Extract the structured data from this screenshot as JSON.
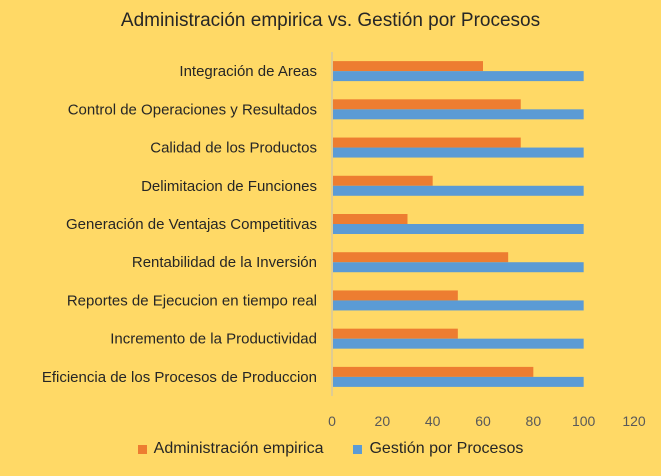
{
  "chart_data": {
    "type": "bar",
    "orientation": "horizontal",
    "title": "Administración empirica vs. Gestión por Procesos",
    "categories": [
      "Integración de Areas",
      "Control de Operaciones y Resultados",
      "Calidad de los Productos",
      "Delimitacion de Funciones",
      "Generación de Ventajas Competitivas",
      "Rentabilidad de la Inversión",
      "Reportes de Ejecucion en tiempo real",
      "Incremento de la Productividad",
      "Eficiencia de los Procesos de Produccion"
    ],
    "series": [
      {
        "name": "Administración empirica",
        "color": "#ed7d31",
        "values": [
          60,
          75,
          75,
          40,
          30,
          70,
          50,
          50,
          80
        ]
      },
      {
        "name": "Gestión por Procesos",
        "color": "#5b9bd5",
        "values": [
          100,
          100,
          100,
          100,
          100,
          100,
          100,
          100,
          100
        ]
      }
    ],
    "xlim": [
      0,
      120
    ],
    "xticks": [
      "0",
      "20",
      "40",
      "60",
      "80",
      "100",
      "120"
    ],
    "grid": false,
    "legend_position": "bottom",
    "background_color": "#ffd966"
  }
}
